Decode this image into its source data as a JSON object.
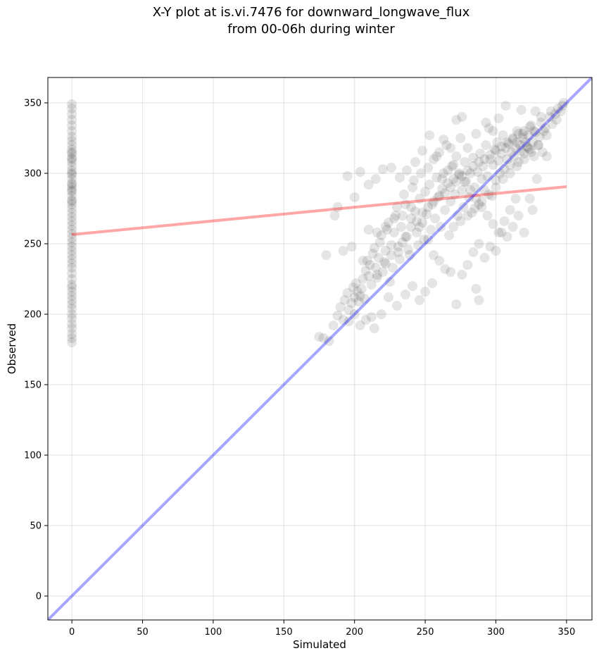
{
  "chart_data": {
    "type": "scatter",
    "title_lines": [
      "X-Y plot at is.vi.7476 for downward_longwave_flux",
      "from 00-06h during winter"
    ],
    "xlabel": "Simulated",
    "ylabel": "Observed",
    "xlim": [
      -17,
      368
    ],
    "ylim": [
      -17,
      368
    ],
    "xticks": [
      0,
      50,
      100,
      150,
      200,
      250,
      300,
      350
    ],
    "yticks": [
      0,
      50,
      100,
      150,
      200,
      250,
      300,
      350
    ],
    "grid": true,
    "point_color": "#000000",
    "point_alpha": 0.1,
    "fit_line": {
      "color": "#ff0000",
      "alpha": 0.35,
      "x": [
        0,
        350
      ],
      "y": [
        256.5,
        290.5
      ]
    },
    "one_to_one_line": {
      "color": "#0000ff",
      "alpha": 0.35,
      "x": [
        -17,
        368
      ],
      "y": [
        -17,
        368
      ]
    },
    "points": [
      [
        0,
        180
      ],
      [
        0,
        183
      ],
      [
        0,
        186
      ],
      [
        0,
        190
      ],
      [
        0,
        193
      ],
      [
        0,
        197
      ],
      [
        0,
        200
      ],
      [
        0,
        204
      ],
      [
        0,
        207
      ],
      [
        0,
        210
      ],
      [
        0,
        213
      ],
      [
        0,
        216
      ],
      [
        0,
        219
      ],
      [
        0,
        221
      ],
      [
        0,
        225
      ],
      [
        0,
        229
      ],
      [
        0,
        233
      ],
      [
        0,
        236
      ],
      [
        0,
        239
      ],
      [
        0,
        242
      ],
      [
        0,
        245
      ],
      [
        0,
        248
      ],
      [
        0,
        251
      ],
      [
        0,
        254
      ],
      [
        0,
        257
      ],
      [
        0,
        260
      ],
      [
        0,
        263
      ],
      [
        0,
        266
      ],
      [
        0,
        269
      ],
      [
        0,
        272
      ],
      [
        0,
        275
      ],
      [
        0,
        278
      ],
      [
        0,
        281
      ],
      [
        0,
        284
      ],
      [
        0,
        287
      ],
      [
        0,
        290
      ],
      [
        0,
        293
      ],
      [
        0,
        296
      ],
      [
        0,
        299
      ],
      [
        0,
        302
      ],
      [
        0,
        305
      ],
      [
        0,
        308
      ],
      [
        0,
        311
      ],
      [
        0,
        314
      ],
      [
        0,
        317
      ],
      [
        0,
        320
      ],
      [
        0,
        323
      ],
      [
        0,
        326
      ],
      [
        0,
        330
      ],
      [
        0,
        334
      ],
      [
        0,
        338
      ],
      [
        0,
        342
      ],
      [
        0,
        346
      ],
      [
        0,
        349
      ],
      [
        0,
        288
      ],
      [
        0,
        292
      ],
      [
        0,
        300
      ],
      [
        0,
        310
      ],
      [
        0,
        315
      ],
      [
        0,
        280
      ],
      [
        175,
        184
      ],
      [
        178,
        183
      ],
      [
        182,
        181
      ],
      [
        185,
        192
      ],
      [
        188,
        199
      ],
      [
        190,
        205
      ],
      [
        192,
        196
      ],
      [
        193,
        210
      ],
      [
        195,
        215
      ],
      [
        196,
        203
      ],
      [
        198,
        208
      ],
      [
        199,
        219
      ],
      [
        200,
        212
      ],
      [
        201,
        222
      ],
      [
        202,
        216
      ],
      [
        203,
        209
      ],
      [
        204,
        213
      ],
      [
        205,
        218
      ],
      [
        206,
        225
      ],
      [
        207,
        211
      ],
      [
        208,
        231
      ],
      [
        209,
        238
      ],
      [
        210,
        227
      ],
      [
        211,
        235
      ],
      [
        212,
        221
      ],
      [
        213,
        243
      ],
      [
        214,
        247
      ],
      [
        215,
        233
      ],
      [
        216,
        228
      ],
      [
        217,
        240
      ],
      [
        218,
        251
      ],
      [
        219,
        256
      ],
      [
        220,
        230
      ],
      [
        221,
        237
      ],
      [
        222,
        245
      ],
      [
        223,
        260
      ],
      [
        224,
        265
      ],
      [
        225,
        223
      ],
      [
        226,
        249
      ],
      [
        227,
        233
      ],
      [
        228,
        258
      ],
      [
        229,
        270
      ],
      [
        230,
        276
      ],
      [
        231,
        244
      ],
      [
        232,
        239
      ],
      [
        233,
        262
      ],
      [
        234,
        251
      ],
      [
        235,
        285
      ],
      [
        236,
        278
      ],
      [
        237,
        255
      ],
      [
        238,
        246
      ],
      [
        239,
        242
      ],
      [
        240,
        268
      ],
      [
        241,
        290
      ],
      [
        242,
        295
      ],
      [
        243,
        273
      ],
      [
        244,
        258
      ],
      [
        245,
        249
      ],
      [
        246,
        282
      ],
      [
        247,
        300
      ],
      [
        248,
        265
      ],
      [
        249,
        253
      ],
      [
        250,
        287
      ],
      [
        251,
        271
      ],
      [
        252,
        304
      ],
      [
        253,
        292
      ],
      [
        254,
        260
      ],
      [
        255,
        278
      ],
      [
        256,
        310
      ],
      [
        257,
        268
      ],
      [
        258,
        297
      ],
      [
        259,
        283
      ],
      [
        260,
        315
      ],
      [
        261,
        262
      ],
      [
        262,
        289
      ],
      [
        263,
        300
      ],
      [
        264,
        274
      ],
      [
        265,
        320
      ],
      [
        266,
        293
      ],
      [
        267,
        256
      ],
      [
        268,
        280
      ],
      [
        269,
        305
      ],
      [
        270,
        296
      ],
      [
        271,
        285
      ],
      [
        272,
        312
      ],
      [
        273,
        270
      ],
      [
        274,
        299
      ],
      [
        275,
        325
      ],
      [
        276,
        288
      ],
      [
        277,
        276
      ],
      [
        278,
        308
      ],
      [
        279,
        294
      ],
      [
        280,
        318
      ],
      [
        281,
        283
      ],
      [
        282,
        300
      ],
      [
        283,
        272
      ],
      [
        284,
        311
      ],
      [
        285,
        290
      ],
      [
        286,
        328
      ],
      [
        287,
        301
      ],
      [
        288,
        278
      ],
      [
        289,
        314
      ],
      [
        290,
        296
      ],
      [
        291,
        305
      ],
      [
        292,
        288
      ],
      [
        293,
        320
      ],
      [
        294,
        298
      ],
      [
        295,
        332
      ],
      [
        296,
        310
      ],
      [
        297,
        284
      ],
      [
        298,
        306
      ],
      [
        299,
        317
      ],
      [
        300,
        295
      ],
      [
        301,
        322
      ],
      [
        302,
        309
      ],
      [
        303,
        300
      ],
      [
        304,
        314
      ],
      [
        305,
        327
      ],
      [
        306,
        303
      ],
      [
        307,
        318
      ],
      [
        308,
        310
      ],
      [
        309,
        321
      ],
      [
        310,
        306
      ],
      [
        311,
        315
      ],
      [
        312,
        324
      ],
      [
        313,
        312
      ],
      [
        314,
        318
      ],
      [
        315,
        330
      ],
      [
        316,
        308
      ],
      [
        317,
        320
      ],
      [
        318,
        316
      ],
      [
        319,
        325
      ],
      [
        320,
        314
      ],
      [
        321,
        322
      ],
      [
        322,
        319
      ],
      [
        323,
        327
      ],
      [
        324,
        317
      ],
      [
        325,
        334
      ],
      [
        326,
        322
      ],
      [
        327,
        312
      ],
      [
        328,
        329
      ],
      [
        330,
        320
      ],
      [
        332,
        336
      ],
      [
        334,
        330
      ],
      [
        336,
        327
      ],
      [
        338,
        340
      ],
      [
        340,
        335
      ],
      [
        342,
        342
      ],
      [
        344,
        346
      ],
      [
        346,
        344
      ],
      [
        347,
        348
      ],
      [
        348,
        350
      ],
      [
        343,
        338
      ],
      [
        339,
        344
      ],
      [
        335,
        332
      ],
      [
        331,
        326
      ],
      [
        327,
        330
      ],
      [
        323,
        318
      ],
      [
        319,
        328
      ],
      [
        315,
        322
      ],
      [
        186,
        270
      ],
      [
        188,
        276
      ],
      [
        195,
        298
      ],
      [
        200,
        283
      ],
      [
        204,
        301
      ],
      [
        210,
        292
      ],
      [
        215,
        296
      ],
      [
        220,
        303
      ],
      [
        226,
        304
      ],
      [
        232,
        297
      ],
      [
        237,
        302
      ],
      [
        243,
        308
      ],
      [
        248,
        316
      ],
      [
        253,
        327
      ],
      [
        258,
        312
      ],
      [
        263,
        324
      ],
      [
        268,
        318
      ],
      [
        272,
        338
      ],
      [
        276,
        340
      ],
      [
        293,
        336
      ],
      [
        298,
        330
      ],
      [
        302,
        339
      ],
      [
        307,
        348
      ],
      [
        318,
        345
      ],
      [
        328,
        344
      ],
      [
        332,
        340
      ],
      [
        180,
        242
      ],
      [
        192,
        245
      ],
      [
        198,
        248
      ],
      [
        206,
        238
      ],
      [
        210,
        260
      ],
      [
        216,
        258
      ],
      [
        222,
        262
      ],
      [
        228,
        268
      ],
      [
        234,
        270
      ],
      [
        240,
        276
      ],
      [
        246,
        262
      ],
      [
        252,
        253
      ],
      [
        256,
        242
      ],
      [
        260,
        238
      ],
      [
        264,
        232
      ],
      [
        268,
        230
      ],
      [
        272,
        207
      ],
      [
        276,
        228
      ],
      [
        280,
        235
      ],
      [
        284,
        244
      ],
      [
        288,
        250
      ],
      [
        292,
        240
      ],
      [
        296,
        248
      ],
      [
        300,
        245
      ],
      [
        304,
        258
      ],
      [
        308,
        255
      ],
      [
        312,
        262
      ],
      [
        316,
        270
      ],
      [
        320,
        258
      ],
      [
        324,
        282
      ],
      [
        326,
        274
      ],
      [
        329,
        296
      ],
      [
        333,
        315
      ],
      [
        336,
        312
      ],
      [
        214,
        190
      ],
      [
        219,
        200
      ],
      [
        224,
        212
      ],
      [
        230,
        206
      ],
      [
        236,
        214
      ],
      [
        241,
        220
      ],
      [
        246,
        210
      ],
      [
        250,
        216
      ],
      [
        255,
        222
      ],
      [
        286,
        218
      ],
      [
        288,
        210
      ],
      [
        212,
        198
      ],
      [
        208,
        196
      ],
      [
        204,
        192
      ],
      [
        200,
        200
      ],
      [
        196,
        195
      ],
      [
        216,
        226
      ],
      [
        222,
        236
      ],
      [
        226,
        242
      ],
      [
        231,
        248
      ],
      [
        236,
        255
      ],
      [
        240,
        262
      ],
      [
        244,
        266
      ],
      [
        248,
        272
      ],
      [
        252,
        276
      ],
      [
        256,
        280
      ],
      [
        260,
        284
      ],
      [
        264,
        286
      ],
      [
        268,
        290
      ],
      [
        272,
        294
      ],
      [
        276,
        298
      ],
      [
        280,
        302
      ],
      [
        284,
        305
      ],
      [
        288,
        308
      ],
      [
        292,
        310
      ],
      [
        296,
        313
      ],
      [
        300,
        316
      ],
      [
        304,
        319
      ],
      [
        308,
        322
      ],
      [
        312,
        325
      ],
      [
        316,
        328
      ],
      [
        320,
        330
      ],
      [
        324,
        333
      ],
      [
        270,
        262
      ],
      [
        275,
        266
      ],
      [
        280,
        270
      ],
      [
        285,
        275
      ],
      [
        290,
        280
      ],
      [
        295,
        285
      ],
      [
        300,
        290
      ],
      [
        305,
        296
      ],
      [
        310,
        300
      ],
      [
        315,
        305
      ],
      [
        320,
        310
      ],
      [
        325,
        315
      ],
      [
        330,
        320
      ],
      [
        262,
        296
      ],
      [
        266,
        302
      ],
      [
        270,
        306
      ],
      [
        274,
        300
      ],
      [
        278,
        294
      ],
      [
        282,
        288
      ],
      [
        286,
        282
      ],
      [
        290,
        276
      ],
      [
        294,
        270
      ],
      [
        298,
        264
      ],
      [
        302,
        258
      ],
      [
        306,
        266
      ],
      [
        310,
        274
      ],
      [
        314,
        282
      ]
    ]
  }
}
